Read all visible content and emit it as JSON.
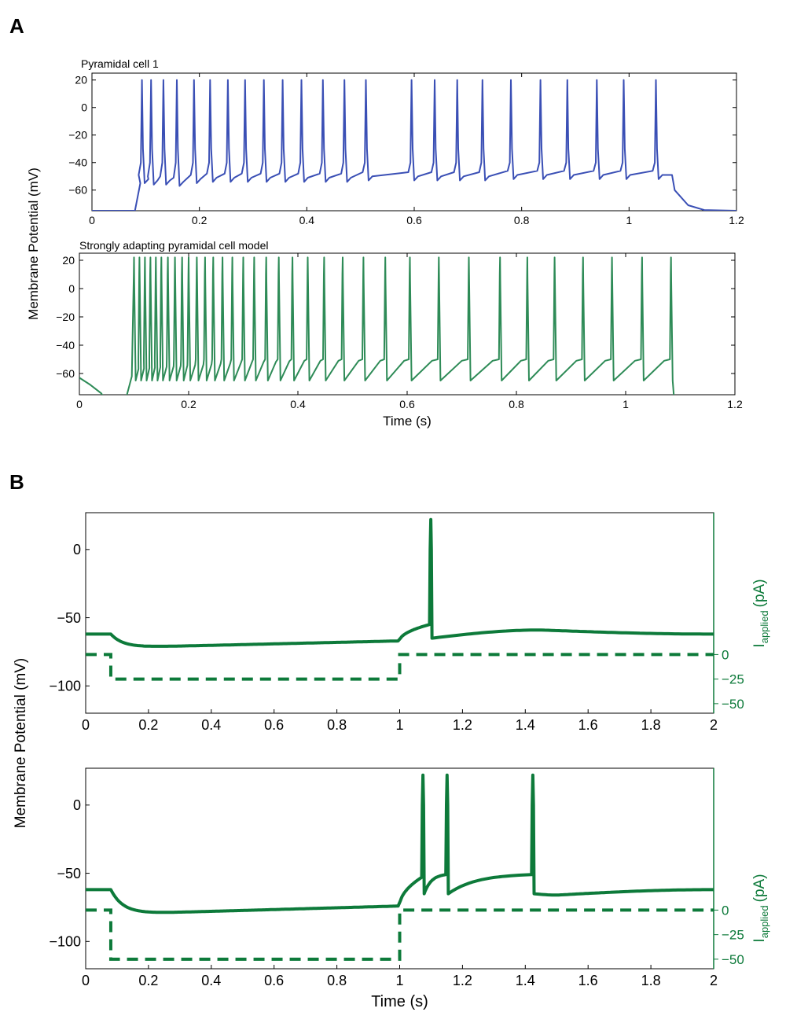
{
  "panel_labels": {
    "a": "A",
    "b": "B"
  },
  "colors": {
    "blue": "#3a4fb5",
    "green_a": "#2e8b57",
    "green_b": "#0d7a3a"
  },
  "chart_data": [
    {
      "id": "A1",
      "type": "line",
      "title": "Pyramidal cell 1",
      "xlabel": "",
      "ylabel": "",
      "xlim": [
        0,
        1.2
      ],
      "ylim": [
        -75,
        25
      ],
      "xticks": [
        0,
        0.2,
        0.4,
        0.6,
        0.8,
        1,
        1.2
      ],
      "yticks": [
        20,
        0,
        -20,
        -40,
        -60
      ],
      "grid": false,
      "series": [
        {
          "color": "#3a4fb5",
          "baseline": -75,
          "stim_on": 0.08,
          "stim_off": 1.08,
          "spike_peak": 20,
          "spike_times": [
            0.093,
            0.11,
            0.133,
            0.158,
            0.19,
            0.22,
            0.253,
            0.285,
            0.32,
            0.355,
            0.39,
            0.43,
            0.47,
            0.51,
            0.595,
            0.638,
            0.68,
            0.727,
            0.78,
            0.835,
            0.885,
            0.94,
            0.99,
            1.05
          ],
          "trough_values": [
            -52,
            -53,
            -53,
            -54,
            -52,
            -51,
            -51,
            -51,
            -51,
            -51,
            -51,
            -51,
            -51,
            -50,
            -50,
            -50,
            -50,
            -50,
            -49,
            -49,
            -49,
            -49,
            -49,
            -49
          ]
        }
      ]
    },
    {
      "id": "A2",
      "type": "line",
      "title": "Strongly adapting pyramidal cell model",
      "xlabel": "Time (s)",
      "ylabel": "",
      "xlim": [
        0,
        1.2
      ],
      "ylim": [
        -75,
        25
      ],
      "xticks": [
        0,
        0.2,
        0.4,
        0.6,
        0.8,
        1,
        1.2
      ],
      "yticks": [
        20,
        0,
        -20,
        -40,
        -60
      ],
      "grid": false,
      "series": [
        {
          "color": "#2e8b57",
          "start_value": -63,
          "stim_on": 0.085,
          "stim_off": 1.083,
          "spike_peak": 22,
          "reset": -65,
          "spike_times": [
            0.1,
            0.11,
            0.12,
            0.13,
            0.14,
            0.15,
            0.162,
            0.175,
            0.188,
            0.2,
            0.215,
            0.23,
            0.245,
            0.262,
            0.28,
            0.3,
            0.32,
            0.342,
            0.365,
            0.39,
            0.418,
            0.448,
            0.482,
            0.52,
            0.56,
            0.605,
            0.658,
            0.713,
            0.77,
            0.82,
            0.87,
            0.922,
            0.975,
            1.03,
            1.083
          ]
        }
      ]
    },
    {
      "id": "B1",
      "type": "line",
      "title": "",
      "xlabel": "",
      "ylabel": "",
      "xlim": [
        0,
        2
      ],
      "ylim": [
        -120,
        27
      ],
      "xticks": [
        0,
        0.2,
        0.4,
        0.6,
        0.8,
        1,
        1.2,
        1.4,
        1.6,
        1.8,
        2
      ],
      "yticks": [
        0,
        -50,
        -100
      ],
      "y2ticks": [
        0,
        -25,
        -50
      ],
      "y2label": "I_applied (pA)",
      "grid": false,
      "series": [
        {
          "kind": "voltage",
          "color": "#0d7a3a",
          "rest": -62,
          "hyper_min": -72,
          "hyper_end": -67,
          "pre_spike": -55,
          "spike_times": [
            1.095
          ],
          "spike_peak": 22,
          "after": -65,
          "late_peak": -59,
          "late_peak_time": 1.45,
          "end_value": -62
        },
        {
          "kind": "current",
          "color": "#0d7a3a",
          "dash": true,
          "levels": [
            0,
            -25,
            0
          ],
          "step_times": [
            0.08,
            1.0
          ]
        }
      ]
    },
    {
      "id": "B2",
      "type": "line",
      "title": "",
      "xlabel": "Time (s)",
      "ylabel": "",
      "xlim": [
        0,
        2
      ],
      "ylim": [
        -120,
        27
      ],
      "xticks": [
        0,
        0.2,
        0.4,
        0.6,
        0.8,
        1,
        1.2,
        1.4,
        1.6,
        1.8,
        2
      ],
      "yticks": [
        0,
        -50,
        -100
      ],
      "y2ticks": [
        0,
        -25,
        -50
      ],
      "y2label": "I_applied (pA)",
      "grid": false,
      "series": [
        {
          "kind": "voltage",
          "color": "#0d7a3a",
          "rest": -62,
          "hyper_min": -80,
          "hyper_end": -74,
          "pre_spike": -53,
          "spike_times": [
            1.07,
            1.147,
            1.42
          ],
          "spike_peak": 22,
          "after": -65,
          "late_peak": -66,
          "late_peak_time": 1.5,
          "end_value": -62
        },
        {
          "kind": "current",
          "color": "#0d7a3a",
          "dash": true,
          "levels": [
            0,
            -50,
            0
          ],
          "step_times": [
            0.08,
            1.0
          ]
        }
      ]
    }
  ],
  "shared_labels": {
    "a_ylabel": "Membrane Potential (mV)",
    "b_ylabel": "Membrane Potential (mV)",
    "b_y2label_main": "I",
    "b_y2label_sub": "applied",
    "b_y2label_unit": "(pA)"
  }
}
